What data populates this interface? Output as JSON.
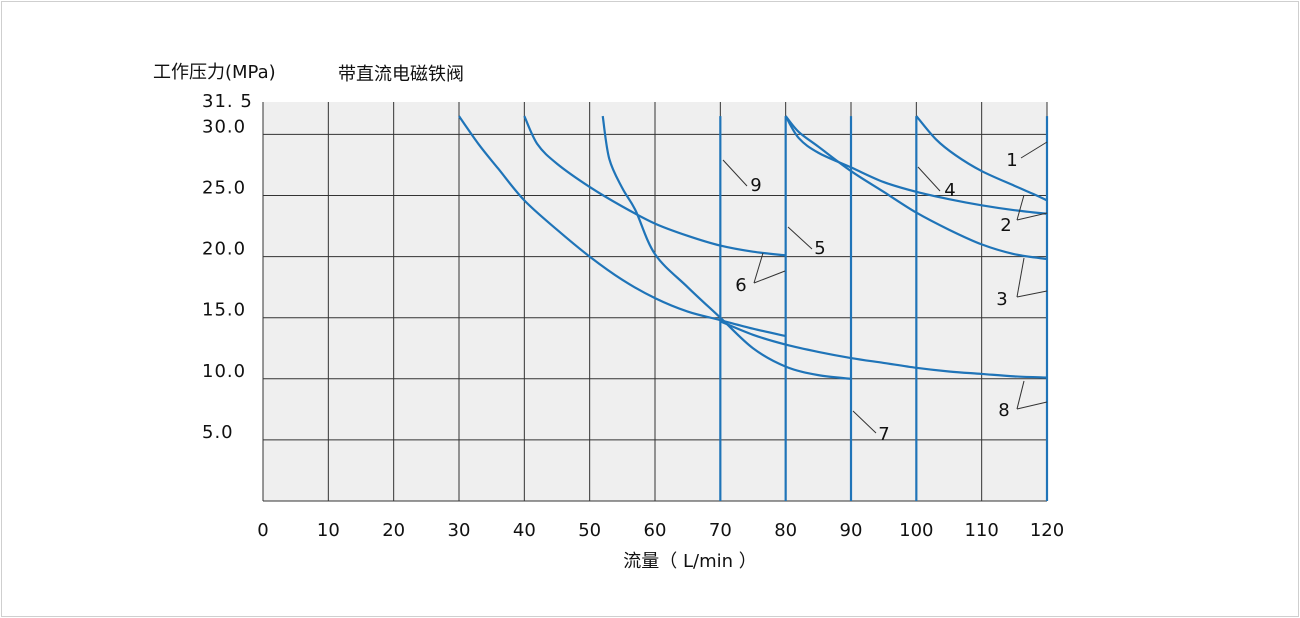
{
  "chart_data": {
    "type": "line",
    "title": "带直流电磁铁阀",
    "ylabel": "工作压力(MPa)",
    "xlabel": "流量（ L/min ）",
    "xlim": [
      0,
      120
    ],
    "ylim": [
      0,
      31.5
    ],
    "grid": true,
    "x_ticks": [
      {
        "value": 0,
        "label": "0"
      },
      {
        "value": 10,
        "label": "10"
      },
      {
        "value": 20,
        "label": "20"
      },
      {
        "value": 30,
        "label": "30"
      },
      {
        "value": 40,
        "label": "40"
      },
      {
        "value": 50,
        "label": "50"
      },
      {
        "value": 60,
        "label": "60"
      },
      {
        "value": 70,
        "label": "70"
      },
      {
        "value": 80,
        "label": "80"
      },
      {
        "value": 90,
        "label": "90"
      },
      {
        "value": 100,
        "label": "100"
      },
      {
        "value": 110,
        "label": "110"
      },
      {
        "value": 120,
        "label": "120"
      }
    ],
    "y_ticks": [
      {
        "value": 5,
        "label": "5.0"
      },
      {
        "value": 10,
        "label": "10.0"
      },
      {
        "value": 15,
        "label": "15.0"
      },
      {
        "value": 20,
        "label": "20.0"
      },
      {
        "value": 25,
        "label": "25.0"
      },
      {
        "value": 30,
        "label": "30.0"
      },
      {
        "value": 31.5,
        "label": "31. 5"
      }
    ],
    "series": [
      {
        "name": "1",
        "points": [
          [
            100,
            31.5
          ],
          [
            103,
            29.6
          ],
          [
            106,
            28.3
          ],
          [
            110,
            27.0
          ],
          [
            115,
            25.8
          ],
          [
            118,
            25.1
          ],
          [
            120,
            24.6
          ]
        ]
      },
      {
        "name": "2",
        "points": [
          [
            80,
            31.5
          ],
          [
            82,
            29.7
          ],
          [
            85,
            28.5
          ],
          [
            90,
            27.3
          ],
          [
            95,
            26.1
          ],
          [
            100,
            25.3
          ],
          [
            105,
            24.7
          ],
          [
            110,
            24.2
          ],
          [
            115,
            23.8
          ],
          [
            120,
            23.5
          ]
        ]
      },
      {
        "name": "3",
        "points": [
          [
            80,
            31.5
          ],
          [
            82,
            30.2
          ],
          [
            85,
            29.0
          ],
          [
            90,
            27.0
          ],
          [
            95,
            25.3
          ],
          [
            100,
            23.6
          ],
          [
            105,
            22.2
          ],
          [
            110,
            21.0
          ],
          [
            115,
            20.2
          ],
          [
            120,
            19.8
          ]
        ]
      },
      {
        "name": "4",
        "points": [
          [
            100,
            31.5
          ],
          [
            100,
            0
          ]
        ]
      },
      {
        "name": "5",
        "points": [
          [
            40,
            31.5
          ],
          [
            42,
            29.2
          ],
          [
            45,
            27.6
          ],
          [
            50,
            25.7
          ],
          [
            55,
            24.1
          ],
          [
            60,
            22.7
          ],
          [
            65,
            21.7
          ],
          [
            70,
            20.9
          ],
          [
            75,
            20.4
          ],
          [
            80,
            20.1
          ]
        ]
      },
      {
        "name": "6",
        "points": [
          [
            30,
            31.5
          ],
          [
            33,
            29.2
          ],
          [
            36,
            27.2
          ],
          [
            40,
            24.6
          ],
          [
            45,
            22.2
          ],
          [
            50,
            20.0
          ],
          [
            55,
            18.1
          ],
          [
            60,
            16.6
          ],
          [
            65,
            15.5
          ],
          [
            70,
            14.8
          ],
          [
            75,
            14.1
          ],
          [
            80,
            13.5
          ]
        ]
      },
      {
        "name": "7",
        "points": [
          [
            52,
            31.5
          ],
          [
            53,
            28.0
          ],
          [
            55,
            25.6
          ],
          [
            57,
            23.8
          ],
          [
            60,
            20.2
          ],
          [
            65,
            17.5
          ],
          [
            70,
            15.0
          ],
          [
            75,
            12.5
          ],
          [
            80,
            11.0
          ],
          [
            85,
            10.3
          ],
          [
            90,
            10.0
          ]
        ]
      },
      {
        "name": "8",
        "points": [
          [
            70,
            14.7
          ],
          [
            75,
            13.6
          ],
          [
            80,
            12.8
          ],
          [
            85,
            12.2
          ],
          [
            90,
            11.7
          ],
          [
            95,
            11.3
          ],
          [
            100,
            10.9
          ],
          [
            105,
            10.6
          ],
          [
            110,
            10.4
          ],
          [
            115,
            10.2
          ],
          [
            120,
            10.1
          ]
        ]
      },
      {
        "name": "9",
        "points": [
          [
            70,
            31.5
          ],
          [
            70,
            0
          ]
        ]
      },
      {
        "name": "",
        "points": [
          [
            80,
            31.5
          ],
          [
            80,
            0
          ]
        ]
      },
      {
        "name": "",
        "points": [
          [
            90,
            31.5
          ],
          [
            90,
            0
          ]
        ]
      },
      {
        "name": "",
        "points": [
          [
            120,
            31.5
          ],
          [
            120,
            0
          ]
        ]
      }
    ]
  }
}
